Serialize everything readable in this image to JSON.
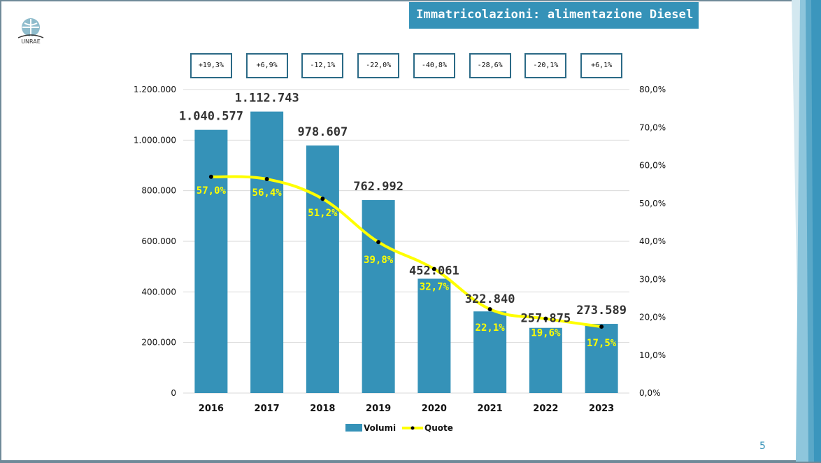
{
  "slide": {
    "title": "Immatricolazioni: alimentazione Diesel",
    "logo_text": "UNRAE",
    "page_number": "5",
    "variations": [
      "+19,3%",
      "+6,9%",
      "-12,1%",
      "-22,0%",
      "-40,8%",
      "-28,6%",
      "-20,1%",
      "+6,1%"
    ]
  },
  "colors": {
    "bar": "#3592b8",
    "line": "#ffff00",
    "marker": "#000000",
    "title_bg": "#3592b8",
    "box_border": "#2b6a86",
    "grid": "#d9d9d9"
  },
  "chart_data": {
    "type": "bar",
    "title": "Immatricolazioni: alimentazione Diesel",
    "categories": [
      "2016",
      "2017",
      "2018",
      "2019",
      "2020",
      "2021",
      "2022",
      "2023"
    ],
    "series": [
      {
        "name": "Volumi",
        "type": "bar",
        "axis": "left",
        "values": [
          1040577,
          1112743,
          978607,
          762992,
          452061,
          322840,
          257875,
          273589
        ],
        "labels": [
          "1.040.577",
          "1.112.743",
          "978.607",
          "762.992",
          "452.061",
          "322.840",
          "257.875",
          "273.589"
        ]
      },
      {
        "name": "Quote",
        "type": "line",
        "axis": "right",
        "values": [
          57.0,
          56.4,
          51.2,
          39.8,
          32.7,
          22.1,
          19.6,
          17.5
        ],
        "labels": [
          "57,0%",
          "56,4%",
          "51,2%",
          "39,8%",
          "32,7%",
          "22,1%",
          "19,6%",
          "17,5%"
        ]
      }
    ],
    "y_left": {
      "range": [
        0,
        1200000
      ],
      "ticks": [
        0,
        200000,
        400000,
        600000,
        800000,
        1000000,
        1200000
      ],
      "tick_labels": [
        "0",
        "200.000",
        "400.000",
        "600.000",
        "800.000",
        "1.000.000",
        "1.200.000"
      ]
    },
    "y_right": {
      "range": [
        0,
        80
      ],
      "ticks": [
        0,
        10,
        20,
        30,
        40,
        50,
        60,
        70,
        80
      ],
      "tick_labels": [
        "0,0%",
        "10,0%",
        "20,0%",
        "30,0%",
        "40,0%",
        "50,0%",
        "60,0%",
        "70,0%",
        "80,0%"
      ]
    },
    "grid": true,
    "legend": {
      "position": "bottom",
      "entries": [
        "Volumi",
        "Quote"
      ]
    },
    "annotations": {
      "yoy_variation": [
        "+19,3%",
        "+6,9%",
        "-12,1%",
        "-22,0%",
        "-40,8%",
        "-28,6%",
        "-20,1%",
        "+6,1%"
      ]
    }
  }
}
